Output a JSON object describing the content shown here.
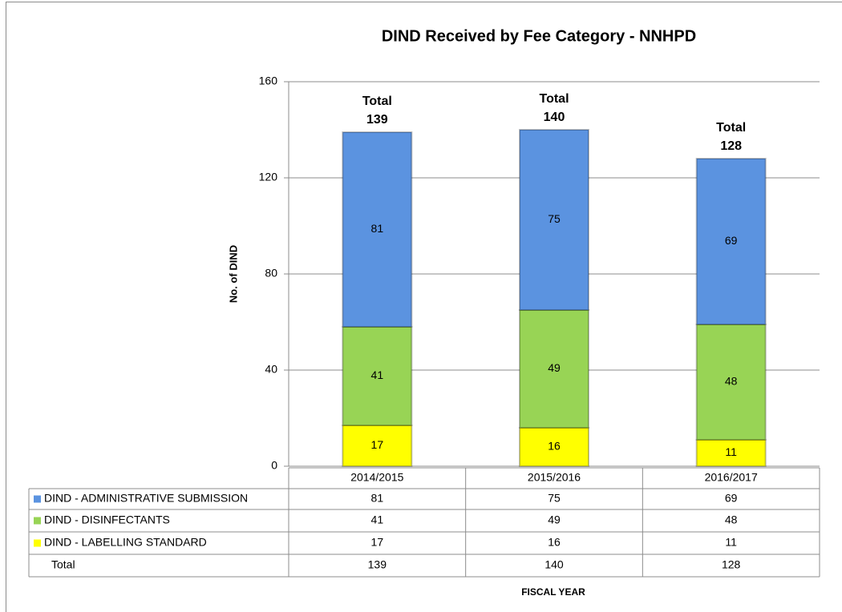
{
  "chart_data": {
    "type": "stacked_bar",
    "title": "DIND Received by Fee Category - NNHPD",
    "y_axis_label": "No. of DIND",
    "x_axis_label": "FISCAL YEAR",
    "categories": [
      "2014/2015",
      "2015/2016",
      "2016/2017"
    ],
    "series": [
      {
        "name": "DIND - ADMINISTRATIVE SUBMISSION",
        "color": "#5b93e0",
        "values": [
          81,
          75,
          69
        ]
      },
      {
        "name": "DIND - DISINFECTANTS",
        "color": "#98d455",
        "values": [
          41,
          49,
          48
        ]
      },
      {
        "name": "DIND - LABELLING STANDARD",
        "color": "#ffff00",
        "values": [
          17,
          16,
          11
        ]
      }
    ],
    "totals": {
      "name": "Total",
      "values": [
        139,
        140,
        128
      ]
    },
    "ylim": [
      0,
      160
    ],
    "yticks": [
      0,
      40,
      80,
      120,
      160
    ],
    "grid": true
  }
}
